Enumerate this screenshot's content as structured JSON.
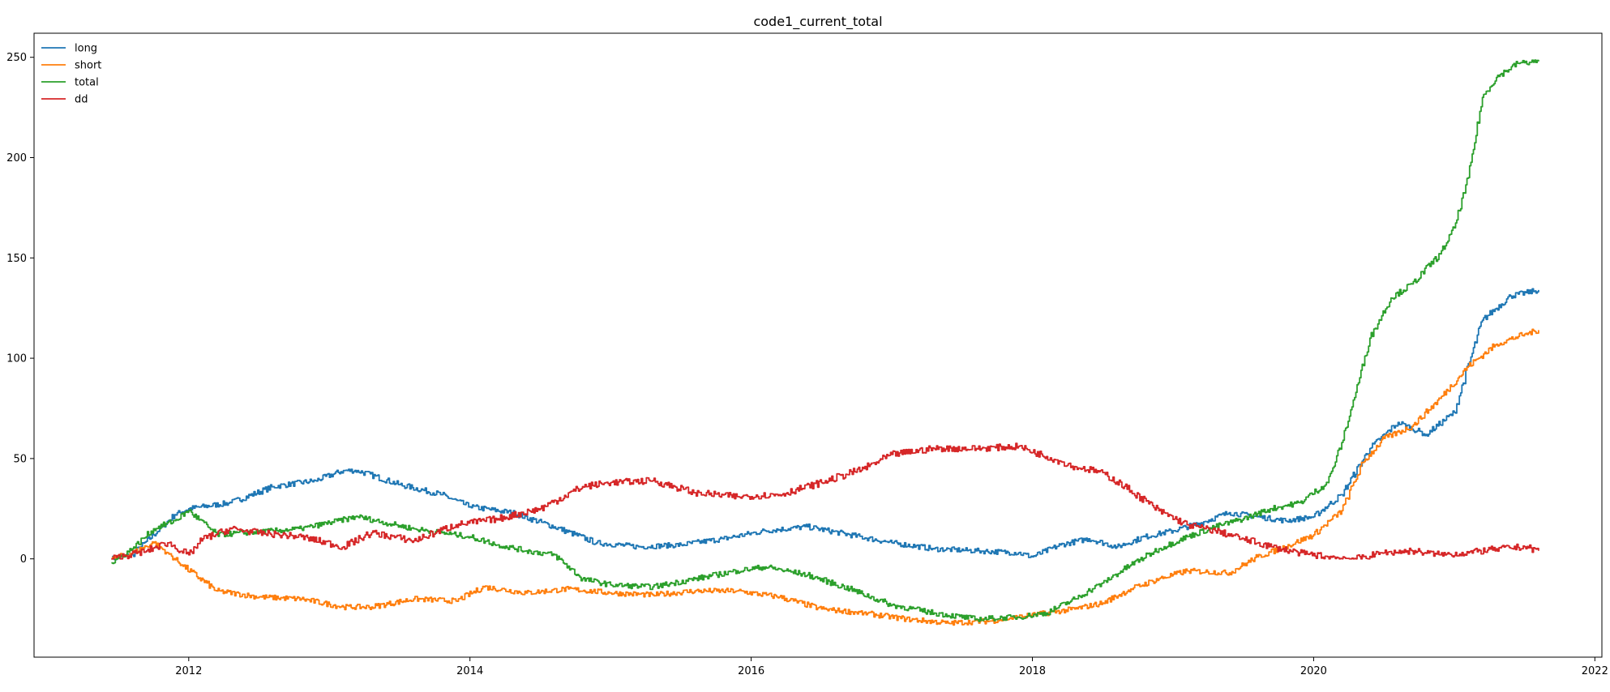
{
  "chart_data": {
    "type": "line",
    "title": "code1_current_total",
    "xlabel": "",
    "ylabel": "",
    "x_is_date": true,
    "xlim": [
      2010.9,
      2022.05
    ],
    "ylim": [
      -49,
      262
    ],
    "x_ticks": [
      2012,
      2014,
      2016,
      2018,
      2020,
      2022
    ],
    "x_tick_labels": [
      "2012",
      "2014",
      "2016",
      "2018",
      "2020",
      "2022"
    ],
    "y_ticks": [
      0,
      50,
      100,
      150,
      200,
      250
    ],
    "y_tick_labels": [
      "0",
      "50",
      "100",
      "150",
      "200",
      "250"
    ],
    "grid": false,
    "legend_position": "upper-left",
    "series": [
      {
        "name": "long",
        "color": "#1f77b4",
        "x": [
          2011.45,
          2011.6,
          2011.75,
          2011.9,
          2012.0,
          2012.3,
          2012.6,
          2012.9,
          2013.1,
          2013.2,
          2013.5,
          2013.8,
          2014.0,
          2014.3,
          2014.6,
          2014.9,
          2015.2,
          2015.5,
          2015.8,
          2016.1,
          2016.4,
          2016.7,
          2017.0,
          2017.3,
          2017.6,
          2017.9,
          2018.0,
          2018.2,
          2018.4,
          2018.6,
          2018.8,
          2019.0,
          2019.2,
          2019.4,
          2019.6,
          2019.8,
          2020.0,
          2020.2,
          2020.4,
          2020.6,
          2020.8,
          2021.0,
          2021.2,
          2021.4,
          2021.6
        ],
        "y": [
          0,
          2,
          12,
          22,
          25,
          28,
          36,
          39,
          44,
          44,
          37,
          32,
          26,
          23,
          16,
          8,
          6,
          7,
          10,
          14,
          16,
          12,
          8,
          5,
          4,
          3,
          1,
          7,
          10,
          6,
          11,
          14,
          18,
          23,
          21,
          19,
          21,
          32,
          55,
          68,
          62,
          73,
          119,
          131,
          134
        ]
      },
      {
        "name": "short",
        "color": "#ff7f0e",
        "x": [
          2011.45,
          2011.6,
          2011.75,
          2011.85,
          2011.95,
          2012.2,
          2012.5,
          2012.8,
          2013.1,
          2013.3,
          2013.6,
          2013.9,
          2014.1,
          2014.4,
          2014.7,
          2015.0,
          2015.3,
          2015.6,
          2015.9,
          2016.2,
          2016.5,
          2016.8,
          2017.1,
          2017.4,
          2017.7,
          2017.9,
          2018.1,
          2018.3,
          2018.5,
          2018.7,
          2018.9,
          2019.1,
          2019.4,
          2019.6,
          2019.8,
          2020.0,
          2020.2,
          2020.35,
          2020.5,
          2020.7,
          2020.9,
          2021.1,
          2021.3,
          2021.5,
          2021.6
        ],
        "y": [
          0,
          3,
          8,
          3,
          -3,
          -16,
          -19,
          -20,
          -24,
          -24,
          -20,
          -21,
          -14,
          -17,
          -15,
          -17,
          -18,
          -16,
          -16,
          -19,
          -25,
          -27,
          -30,
          -32,
          -31,
          -29,
          -27,
          -25,
          -22,
          -15,
          -10,
          -6,
          -7,
          1,
          6,
          12,
          24,
          48,
          60,
          66,
          80,
          96,
          107,
          112,
          114
        ]
      },
      {
        "name": "total",
        "color": "#2ca02c",
        "x": [
          2011.45,
          2011.6,
          2011.75,
          2011.9,
          2012.0,
          2012.2,
          2012.4,
          2012.6,
          2012.8,
          2013.0,
          2013.2,
          2013.4,
          2013.6,
          2013.8,
          2014.0,
          2014.2,
          2014.4,
          2014.6,
          2014.8,
          2015.0,
          2015.3,
          2015.6,
          2015.9,
          2016.1,
          2016.4,
          2016.7,
          2017.0,
          2017.3,
          2017.6,
          2017.9,
          2018.1,
          2018.3,
          2018.5,
          2018.7,
          2018.9,
          2019.1,
          2019.3,
          2019.5,
          2019.7,
          2019.9,
          2020.1,
          2020.2,
          2020.3,
          2020.4,
          2020.55,
          2020.7,
          2020.9,
          2021.0,
          2021.1,
          2021.2,
          2021.3,
          2021.45,
          2021.6
        ],
        "y": [
          -2,
          5,
          15,
          19,
          24,
          12,
          13,
          14,
          15,
          18,
          21,
          18,
          15,
          13,
          11,
          7,
          4,
          2,
          -10,
          -13,
          -14,
          -10,
          -6,
          -4,
          -8,
          -15,
          -23,
          -27,
          -30,
          -29,
          -27,
          -20,
          -12,
          -3,
          5,
          11,
          16,
          20,
          25,
          28,
          38,
          58,
          83,
          110,
          130,
          137,
          152,
          165,
          190,
          230,
          240,
          247,
          248
        ]
      },
      {
        "name": "dd",
        "color": "#d62728",
        "x": [
          2011.45,
          2011.7,
          2011.85,
          2012.0,
          2012.1,
          2012.3,
          2012.5,
          2012.8,
          2013.1,
          2013.3,
          2013.6,
          2013.9,
          2014.2,
          2014.5,
          2014.8,
          2015.0,
          2015.3,
          2015.6,
          2015.9,
          2016.2,
          2016.5,
          2016.8,
          2017.0,
          2017.3,
          2017.6,
          2017.9,
          2018.1,
          2018.3,
          2018.5,
          2018.7,
          2018.9,
          2019.1,
          2019.3,
          2019.5,
          2019.7,
          2019.9,
          2020.1,
          2020.3,
          2020.5,
          2020.7,
          2020.9,
          2021.1,
          2021.3,
          2021.5,
          2021.6
        ],
        "y": [
          0,
          4,
          8,
          2,
          10,
          15,
          13,
          11,
          6,
          13,
          9,
          17,
          20,
          25,
          36,
          38,
          39,
          33,
          31,
          32,
          38,
          45,
          52,
          55,
          55,
          56,
          51,
          46,
          43,
          34,
          24,
          17,
          14,
          10,
          6,
          3,
          1,
          0,
          3,
          4,
          2,
          3,
          5,
          6,
          4
        ]
      }
    ]
  }
}
